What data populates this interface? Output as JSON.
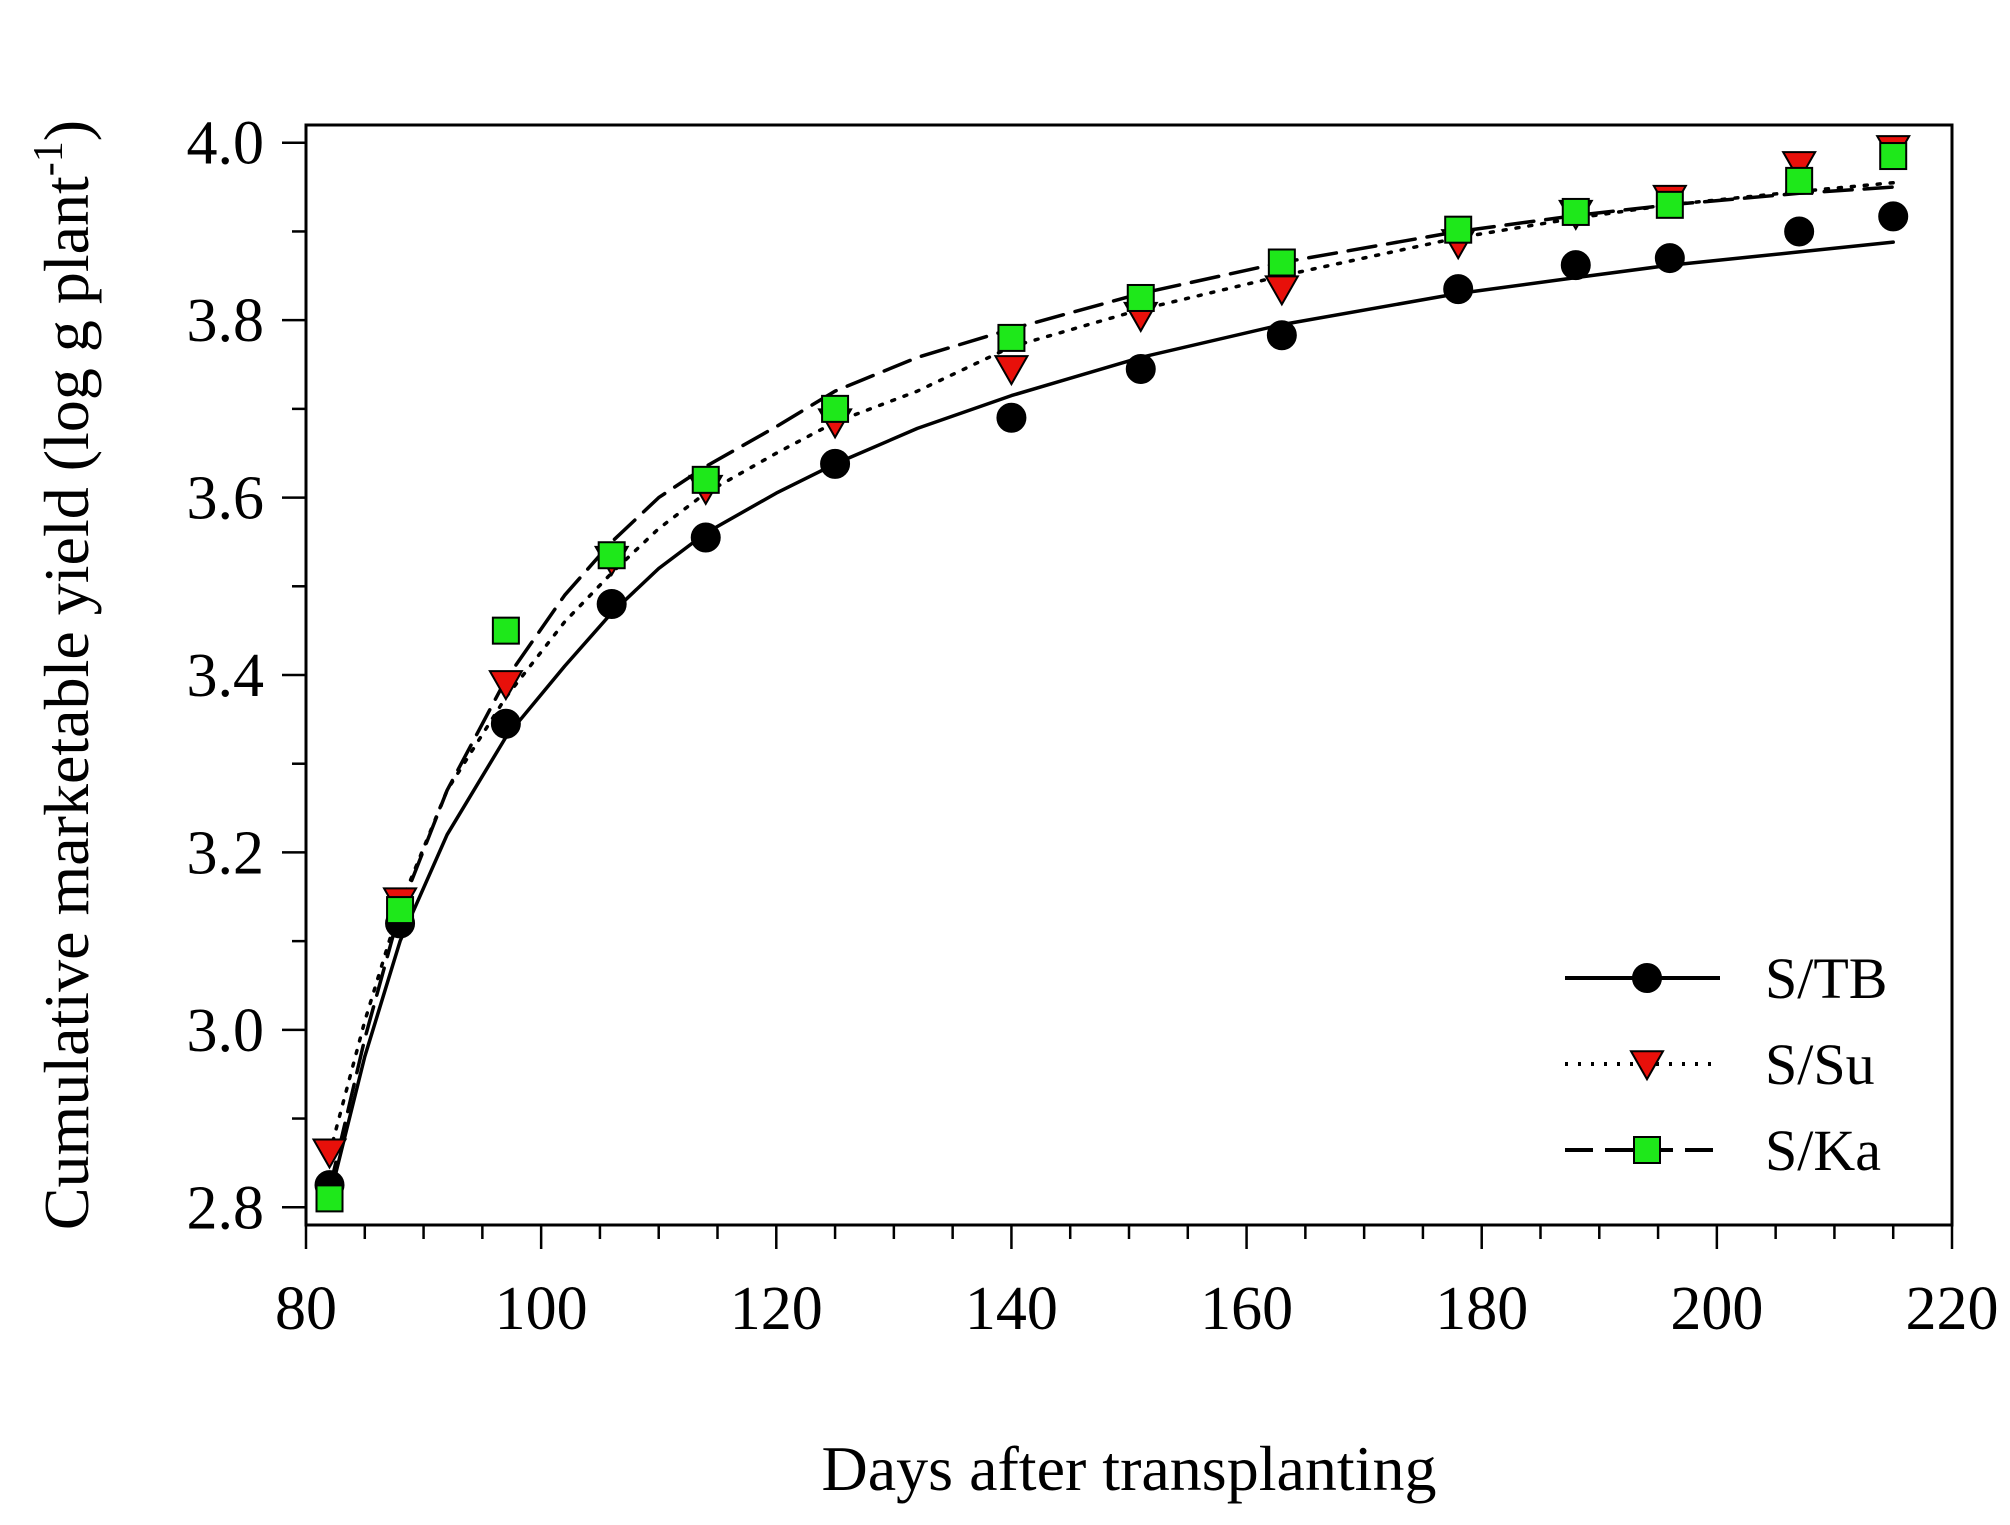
{
  "colors": {
    "background": "#ffffff",
    "axis": "#000000",
    "stb_marker": "#000000",
    "ssu_marker": "#e8100a",
    "ska_marker": "#1ee81a"
  },
  "chart_data": {
    "type": "scatter",
    "title": "",
    "xlabel": "Days after transplanting",
    "ylabel_main": "Cumulative marketable yield (log g plant",
    "ylabel_sup": "-1",
    "ylabel_close": ")",
    "xlim": [
      80,
      220
    ],
    "ylim": [
      2.78,
      4.02
    ],
    "x_ticks": [
      80,
      100,
      120,
      140,
      160,
      180,
      200,
      220
    ],
    "x_tick_labels": [
      "80",
      "100",
      "120",
      "140",
      "160",
      "180",
      "200",
      "220"
    ],
    "x_minor_step": 5,
    "y_ticks": [
      2.8,
      3.0,
      3.2,
      3.4,
      3.6,
      3.8,
      4.0
    ],
    "y_tick_labels": [
      "2.8",
      "3.0",
      "3.2",
      "3.4",
      "3.6",
      "3.8",
      "4.0"
    ],
    "y_minor_step": 0.1,
    "grid": false,
    "legend_position": "bottom-right",
    "series": [
      {
        "name": "S/TB",
        "marker": "circle",
        "line_style": "solid",
        "color": "#000000",
        "x": [
          82,
          88,
          97,
          106,
          114,
          125,
          140,
          151,
          163,
          178,
          188,
          196,
          207,
          215
        ],
        "y": [
          2.825,
          3.12,
          3.345,
          3.48,
          3.555,
          3.638,
          3.69,
          3.745,
          3.783,
          3.835,
          3.862,
          3.87,
          3.9,
          3.917
        ],
        "fit_x": [
          82,
          85,
          88,
          92,
          97,
          102,
          106,
          110,
          114,
          120,
          125,
          132,
          140,
          151,
          163,
          178,
          188,
          196,
          207,
          215
        ],
        "fit_y": [
          2.81,
          2.97,
          3.1,
          3.22,
          3.33,
          3.41,
          3.47,
          3.52,
          3.56,
          3.605,
          3.638,
          3.678,
          3.715,
          3.758,
          3.795,
          3.83,
          3.848,
          3.862,
          3.877,
          3.888
        ]
      },
      {
        "name": "S/Su",
        "marker": "triangle-down",
        "line_style": "dotted",
        "color": "#e8100a",
        "x": [
          82,
          88,
          97,
          106,
          114,
          125,
          140,
          151,
          163,
          178,
          188,
          196,
          207,
          215
        ],
        "y": [
          2.862,
          3.145,
          3.39,
          3.53,
          3.61,
          3.685,
          3.745,
          3.805,
          3.835,
          3.887,
          3.92,
          3.937,
          3.975,
          3.993
        ],
        "fit_x": [
          82,
          85,
          88,
          92,
          97,
          102,
          106,
          110,
          114,
          120,
          125,
          132,
          140,
          151,
          163,
          178,
          188,
          196,
          207,
          215
        ],
        "fit_y": [
          2.86,
          3.01,
          3.14,
          3.27,
          3.375,
          3.46,
          3.515,
          3.565,
          3.605,
          3.65,
          3.685,
          3.72,
          3.77,
          3.812,
          3.85,
          3.893,
          3.915,
          3.93,
          3.945,
          3.955
        ]
      },
      {
        "name": "S/Ka",
        "marker": "square",
        "line_style": "dashed",
        "color": "#1ee81a",
        "x": [
          82,
          88,
          97,
          106,
          114,
          125,
          140,
          151,
          163,
          178,
          188,
          196,
          207,
          215
        ],
        "y": [
          2.81,
          3.135,
          3.45,
          3.535,
          3.62,
          3.7,
          3.78,
          3.825,
          3.865,
          3.902,
          3.922,
          3.93,
          3.957,
          3.985
        ],
        "fit_x": [
          82,
          85,
          88,
          92,
          97,
          102,
          106,
          110,
          114,
          120,
          125,
          132,
          140,
          151,
          163,
          178,
          188,
          196,
          207,
          215
        ],
        "fit_y": [
          2.82,
          2.99,
          3.135,
          3.27,
          3.395,
          3.49,
          3.55,
          3.6,
          3.635,
          3.68,
          3.72,
          3.758,
          3.79,
          3.83,
          3.865,
          3.9,
          3.918,
          3.93,
          3.943,
          3.95
        ]
      }
    ]
  }
}
